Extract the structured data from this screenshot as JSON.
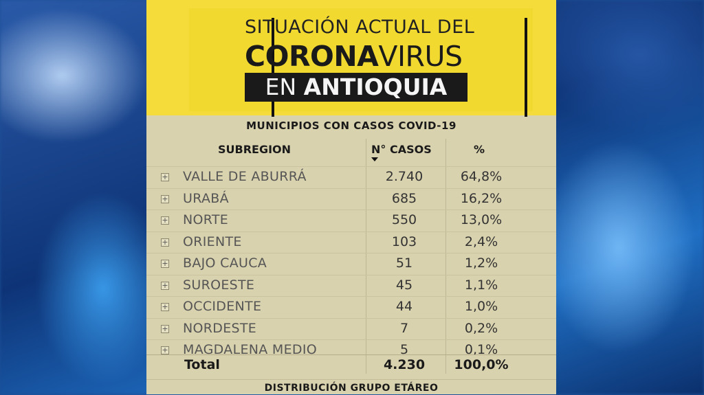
{
  "header": {
    "line1": "SITUACIÓN ACTUAL DEL",
    "line2_bold": "CORONA",
    "line2_regular": "VIRUS",
    "line3_regular": "EN ",
    "line3_bold": "ANTIOQUIA"
  },
  "table": {
    "title": "MUNICIPIOS CON CASOS COVID-19",
    "columns": [
      "SUBREGION",
      "N° CASOS",
      "%"
    ],
    "expand_glyph": "+",
    "rows": [
      {
        "subregion": "VALLE DE ABURRÁ",
        "cases": "2.740",
        "pct": "64,8%"
      },
      {
        "subregion": "URABÁ",
        "cases": "685",
        "pct": "16,2%"
      },
      {
        "subregion": "NORTE",
        "cases": "550",
        "pct": "13,0%"
      },
      {
        "subregion": "ORIENTE",
        "cases": "103",
        "pct": "2,4%"
      },
      {
        "subregion": "BAJO CAUCA",
        "cases": "51",
        "pct": "1,2%"
      },
      {
        "subregion": "SUROESTE",
        "cases": "45",
        "pct": "1,1%"
      },
      {
        "subregion": "OCCIDENTE",
        "cases": "44",
        "pct": "1,0%"
      },
      {
        "subregion": "NORDESTE",
        "cases": "7",
        "pct": "0,2%"
      },
      {
        "subregion": "MAGDALENA MEDIO",
        "cases": "5",
        "pct": "0,1%"
      }
    ],
    "total": {
      "label": "Total",
      "cases": "4.230",
      "pct": "100,0%"
    }
  },
  "footer": {
    "title": "DISTRIBUCIÓN GRUPO ETÁREO"
  },
  "colors": {
    "header_yellow": "#f6dc3a",
    "panel_beige": "#d9d2ae",
    "dark_band": "#1a1a1a"
  }
}
